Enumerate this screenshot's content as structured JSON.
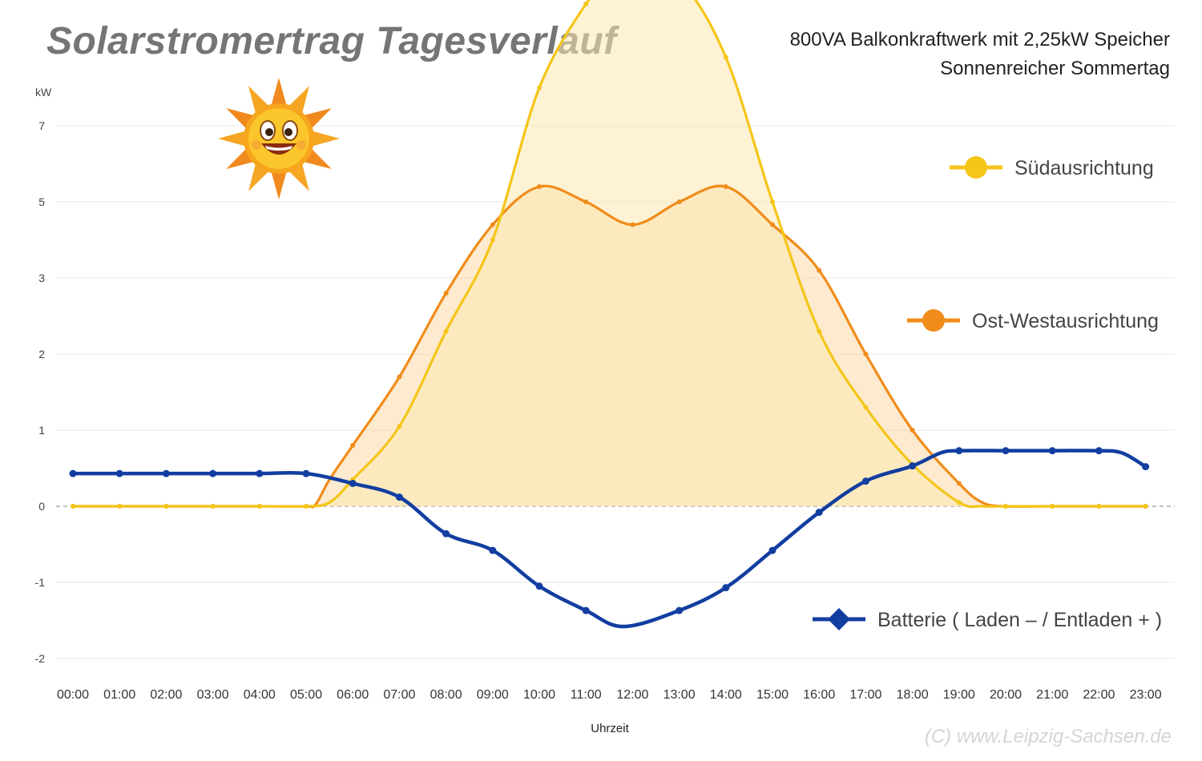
{
  "header": {
    "title": "Solarstromertrag Tagesverlauf",
    "subtitle_line1": "800VA Balkonkraftwerk mit 2,25kW Speicher",
    "subtitle_line2": "Sonnenreicher Sommertag"
  },
  "watermark": "(C) www.Leipzig-Sachsen.de",
  "decoration": {
    "icon": "smiling-sun-icon"
  },
  "chart_data": {
    "type": "area",
    "title": "Solarstromertrag Tagesverlauf",
    "xlabel": "Uhrzeit",
    "ylabel": "kW",
    "y_ticks": [
      "-2",
      "-1",
      "0",
      "1",
      "2",
      "3",
      "5",
      "7"
    ],
    "x": [
      "00:00",
      "01:00",
      "02:00",
      "03:00",
      "04:00",
      "05:00",
      "06:00",
      "07:00",
      "08:00",
      "09:00",
      "10:00",
      "11:00",
      "12:00",
      "13:00",
      "14:00",
      "15:00",
      "16:00",
      "17:00",
      "18:00",
      "19:00",
      "20:00",
      "21:00",
      "22:00",
      "23:00"
    ],
    "grid": true,
    "legend_position": "right",
    "series": [
      {
        "name": "Südausrichtung",
        "type": "area",
        "color": "#f5c518",
        "fill": "#fbe9b0",
        "x": [
          0,
          1,
          2,
          3,
          4,
          5,
          5.5,
          6,
          7,
          8,
          9,
          10,
          11,
          11.5,
          12,
          13,
          14,
          15,
          16,
          17,
          18,
          19,
          19.5,
          20,
          21,
          22,
          23
        ],
        "values": [
          0,
          0,
          0,
          0,
          0,
          0,
          0.05,
          0.35,
          1.05,
          2.3,
          3.5,
          5.5,
          6.6,
          6.9,
          7,
          6.9,
          5.9,
          4,
          2.3,
          1.3,
          0.55,
          0.05,
          0,
          0,
          0,
          0,
          0
        ]
      },
      {
        "name": "Ost-Westausrichtung",
        "type": "area",
        "color": "#f08c1a",
        "fill": "#fcd9a8",
        "x": [
          0,
          1,
          2,
          3,
          4,
          5,
          5.2,
          5.5,
          6,
          7,
          8,
          9,
          10,
          11,
          12,
          13,
          14,
          15,
          16,
          17,
          18,
          19,
          19.5,
          20,
          21,
          22,
          23
        ],
        "values": [
          0,
          0,
          0,
          0,
          0,
          0,
          0.02,
          0.35,
          0.8,
          1.7,
          2.8,
          3.7,
          4.2,
          4,
          3.7,
          4,
          4.2,
          3.7,
          3.1,
          2,
          1,
          0.3,
          0.05,
          0,
          0,
          0,
          0
        ]
      },
      {
        "name": "Batterie ( Laden – / Entladen + )",
        "type": "line",
        "color": "#123ea0",
        "x": [
          0,
          1,
          2,
          3,
          4,
          5,
          6,
          7,
          8,
          9,
          10,
          11,
          11.8,
          13,
          14,
          15,
          16,
          17,
          18,
          18.6,
          19,
          20,
          21,
          22,
          22.5,
          23
        ],
        "values": [
          0.43,
          0.43,
          0.43,
          0.43,
          0.43,
          0.43,
          0.3,
          0.12,
          -0.36,
          -0.58,
          -1.05,
          -1.37,
          -1.58,
          -1.37,
          -1.07,
          -0.58,
          -0.08,
          0.33,
          0.53,
          0.7,
          0.73,
          0.73,
          0.73,
          0.73,
          0.7,
          0.52
        ]
      }
    ]
  }
}
